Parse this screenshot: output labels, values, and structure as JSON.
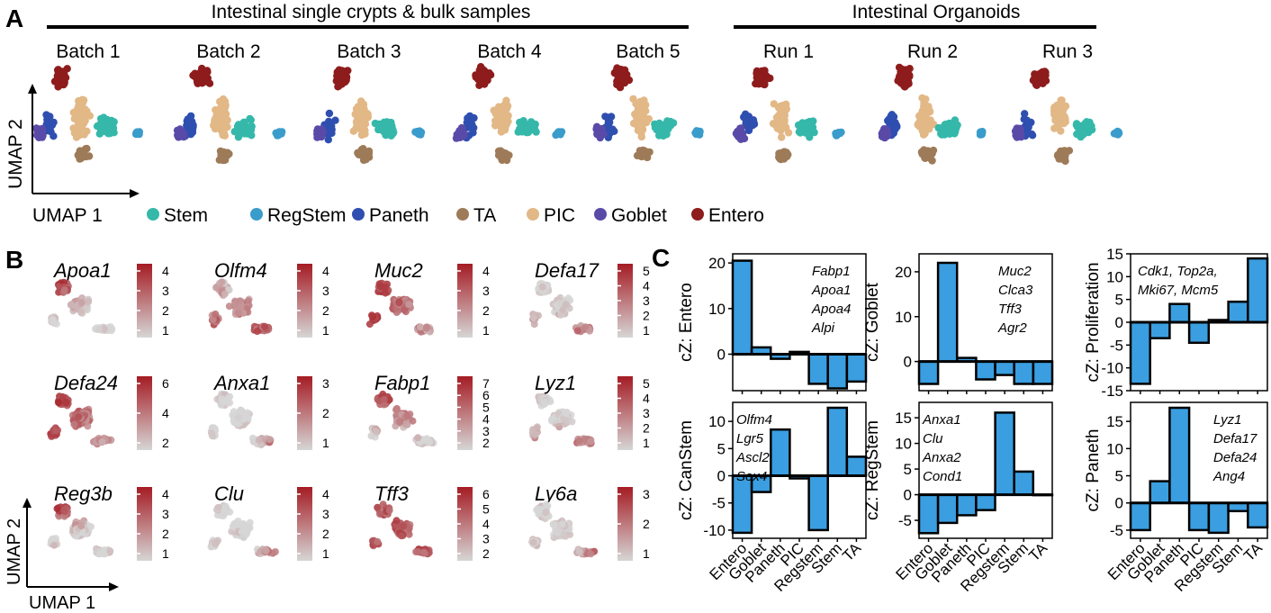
{
  "panel_labels": {
    "a": "A",
    "b": "B",
    "c": "C"
  },
  "colors": {
    "Stem": "#35b8aa",
    "RegStem": "#3a9ccb",
    "Paneth": "#2e4fb0",
    "TA": "#9e7b58",
    "PIC": "#e2b886",
    "Goblet": "#5a4aa8",
    "Entero": "#8e1c1c",
    "bar": "#3a9ee0",
    "expr_high": "#a51c24",
    "expr_low": "#d6d6d6"
  },
  "panel_a": {
    "group_left": "Intestinal single crypts & bulk samples",
    "group_right": "Intestinal Organoids",
    "titles": [
      "Batch 1",
      "Batch 2",
      "Batch 3",
      "Batch 4",
      "Batch 5",
      "Run 1",
      "Run 2",
      "Run 3"
    ],
    "axis_y": "UMAP 2",
    "axis_x": "UMAP 1",
    "legend": [
      "Stem",
      "RegStem",
      "Paneth",
      "TA",
      "PIC",
      "Goblet",
      "Entero"
    ]
  },
  "panel_b": {
    "axis_y": "UMAP 2",
    "axis_x": "UMAP 1",
    "genes": [
      {
        "name": "Apoa1",
        "ticks": [
          "4",
          "3",
          "2",
          "1"
        ],
        "hot": "top-left"
      },
      {
        "name": "Olfm4",
        "ticks": [
          "4",
          "3",
          "2",
          "1"
        ],
        "hot": "lower"
      },
      {
        "name": "Muc2",
        "ticks": [
          "4",
          "3",
          "2",
          "1"
        ],
        "hot": "left"
      },
      {
        "name": "Defa17",
        "ticks": [
          "5",
          "4",
          "3",
          "2",
          "1"
        ],
        "hot": "bottom"
      },
      {
        "name": "Defa24",
        "ticks": [
          "6",
          "4",
          "2"
        ],
        "hot": "left"
      },
      {
        "name": "Anxa1",
        "ticks": [
          "3",
          "2",
          "1"
        ],
        "hot": "right"
      },
      {
        "name": "Fabp1",
        "ticks": [
          "7",
          "6",
          "5",
          "4",
          "3",
          "2"
        ],
        "hot": "top"
      },
      {
        "name": "Lyz1",
        "ticks": [
          "5",
          "4",
          "3",
          "2",
          "1"
        ],
        "hot": "bottom"
      },
      {
        "name": "Reg3b",
        "ticks": [
          "4",
          "3",
          "2",
          "1"
        ],
        "hot": "top-left"
      },
      {
        "name": "Clu",
        "ticks": [
          "4",
          "3",
          "2",
          "1"
        ],
        "hot": "right"
      },
      {
        "name": "Tff3",
        "ticks": [
          "6",
          "5",
          "4",
          "3",
          "2"
        ],
        "hot": "all"
      },
      {
        "name": "Ly6a",
        "ticks": [
          "3",
          "2",
          "1"
        ],
        "hot": "right"
      }
    ]
  },
  "chart_data": [
    {
      "type": "bar",
      "title": "cZ: Entero",
      "ylabel": "cZ:  Entero",
      "categories": [
        "Entero",
        "Goblet",
        "Paneth",
        "PIC",
        "Regstem",
        "Stem",
        "TA"
      ],
      "values": [
        20.5,
        1.5,
        -1.0,
        0.5,
        -6.5,
        -7.5,
        -6.0
      ],
      "ylim": [
        -8,
        22
      ],
      "yticks": [
        "20",
        "10",
        "0"
      ],
      "ytick_values": [
        20,
        10,
        0
      ],
      "markers": [
        "Fabp1",
        "Apoa1",
        "Apoa4",
        "Alpi"
      ]
    },
    {
      "type": "bar",
      "title": "cZ: Goblet",
      "ylabel": "cZ:  Goblet",
      "categories": [
        "Entero",
        "Goblet",
        "Paneth",
        "PIC",
        "Regstem",
        "Stem",
        "TA"
      ],
      "values": [
        -5.0,
        22.0,
        0.8,
        -4.0,
        -3.0,
        -5.0,
        -5.0
      ],
      "ylim": [
        -6.5,
        24
      ],
      "yticks": [
        "20",
        "10",
        "0"
      ],
      "ytick_values": [
        20,
        10,
        0
      ],
      "markers": [
        "Muc2",
        "Clca3",
        "Tff3",
        "Agr2"
      ]
    },
    {
      "type": "bar",
      "title": "cZ: Proliferation",
      "ylabel": "cZ:  Proliferation",
      "categories": [
        "Entero",
        "Goblet",
        "Paneth",
        "PIC",
        "Regstem",
        "Stem",
        "TA"
      ],
      "values": [
        -13.5,
        -3.5,
        4.0,
        -4.5,
        0.5,
        4.5,
        14.0
      ],
      "ylim": [
        -15,
        15
      ],
      "yticks": [
        "15",
        "10",
        "5",
        "0",
        "-5",
        "-10",
        "-15"
      ],
      "ytick_values": [
        15,
        10,
        5,
        0,
        -5,
        -10,
        -15
      ],
      "markers": [
        "Cdk1, Top2a,",
        "Mki67, Mcm5"
      ]
    },
    {
      "type": "bar",
      "title": "cZ: CanStem",
      "ylabel": "cZ:  CanStem",
      "categories": [
        "Entero",
        "Goblet",
        "Paneth",
        "PIC",
        "Regstem",
        "Stem",
        "TA"
      ],
      "values": [
        -10.5,
        -3.0,
        8.5,
        -0.5,
        -10.0,
        12.5,
        3.5
      ],
      "ylim": [
        -11.5,
        13.5
      ],
      "yticks": [
        "10",
        "5",
        "0",
        "-5",
        "-10"
      ],
      "ytick_values": [
        10,
        5,
        0,
        -5,
        -10
      ],
      "markers": [
        "Olfm4",
        "Lgr5",
        "Ascl2",
        "Sox4"
      ]
    },
    {
      "type": "bar",
      "title": "cZ: RegStem",
      "ylabel": "cZ:  RegStem",
      "categories": [
        "Entero",
        "Goblet",
        "Paneth",
        "PIC",
        "Regstem",
        "Stem",
        "TA"
      ],
      "values": [
        -7.5,
        -5.5,
        -4.0,
        -3.0,
        16.0,
        4.5,
        0
      ],
      "ylim": [
        -8.5,
        18
      ],
      "yticks": [
        "15",
        "10",
        "5",
        "0",
        "-5"
      ],
      "ytick_values": [
        15,
        10,
        5,
        0,
        -5
      ],
      "markers": [
        "Anxa1",
        "Clu",
        "Anxa2",
        "Cond1"
      ]
    },
    {
      "type": "bar",
      "title": "cZ: Paneth",
      "ylabel": "cZ:  Paneth",
      "categories": [
        "Entero",
        "Goblet",
        "Paneth",
        "PIC",
        "Regstem",
        "Stem",
        "TA"
      ],
      "values": [
        -5.0,
        4.0,
        17.5,
        -5.0,
        -5.5,
        -1.5,
        -4.5
      ],
      "ylim": [
        -6.5,
        18.5
      ],
      "yticks": [
        "15",
        "10",
        "5",
        "0",
        "-5"
      ],
      "ytick_values": [
        15,
        10,
        5,
        0,
        -5
      ],
      "markers": [
        "Lyz1",
        "Defa17",
        "Defa24",
        "Ang4"
      ]
    }
  ]
}
